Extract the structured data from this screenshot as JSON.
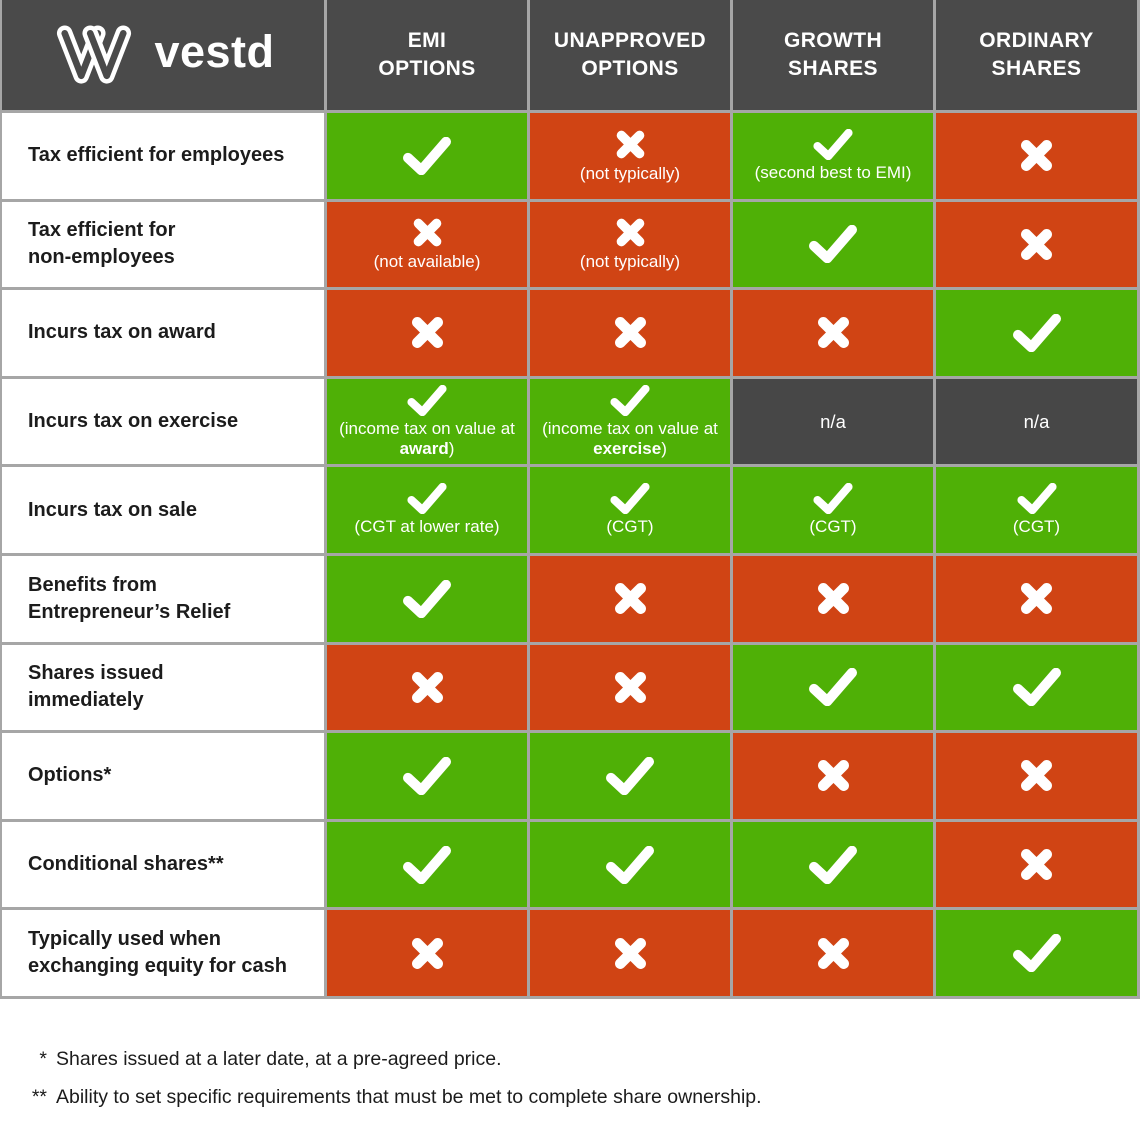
{
  "brand": {
    "name": "vestd",
    "logo_icon": "vestd-heart-logo-icon"
  },
  "colors": {
    "green": "#4fb006",
    "red": "#d04414",
    "header_gray": "#4a4a4a",
    "na_gray": "#474747",
    "grid_gray": "#a6a6a6"
  },
  "icons": {
    "yes": "check-icon",
    "no": "cross-icon"
  },
  "chart_data": {
    "type": "table",
    "title": "vestd share scheme comparison",
    "na_text": "n/a",
    "columns": [
      "EMI\nOPTIONS",
      "UNAPPROVED\nOPTIONS",
      "GROWTH\nSHARES",
      "ORDINARY\nSHARES"
    ],
    "rows": [
      {
        "label": "Tax efficient for employees",
        "cells": [
          {
            "state": "yes",
            "note": ""
          },
          {
            "state": "no",
            "note": "(not typically)"
          },
          {
            "state": "yes",
            "note": "(second best to EMI)"
          },
          {
            "state": "no",
            "note": ""
          }
        ]
      },
      {
        "label": "Tax efficient for\nnon-employees",
        "cells": [
          {
            "state": "no",
            "note": "(not available)"
          },
          {
            "state": "no",
            "note": "(not typically)"
          },
          {
            "state": "yes",
            "note": ""
          },
          {
            "state": "no",
            "note": ""
          }
        ]
      },
      {
        "label": "Incurs tax on award",
        "cells": [
          {
            "state": "no",
            "note": ""
          },
          {
            "state": "no",
            "note": ""
          },
          {
            "state": "no",
            "note": ""
          },
          {
            "state": "yes",
            "note": ""
          }
        ]
      },
      {
        "label": "Incurs tax on exercise",
        "cells": [
          {
            "state": "yes",
            "note": "(income tax on value at award)",
            "note_bold": "award"
          },
          {
            "state": "yes",
            "note": "(income tax on value at exercise)",
            "note_bold": "exercise"
          },
          {
            "state": "na",
            "note": ""
          },
          {
            "state": "na",
            "note": ""
          }
        ]
      },
      {
        "label": "Incurs tax on sale",
        "cells": [
          {
            "state": "yes",
            "note": "(CGT at lower rate)"
          },
          {
            "state": "yes",
            "note": "(CGT)"
          },
          {
            "state": "yes",
            "note": "(CGT)"
          },
          {
            "state": "yes",
            "note": "(CGT)"
          }
        ]
      },
      {
        "label": "Benefits from\nEntrepreneur’s Relief",
        "cells": [
          {
            "state": "yes",
            "note": ""
          },
          {
            "state": "no",
            "note": ""
          },
          {
            "state": "no",
            "note": ""
          },
          {
            "state": "no",
            "note": ""
          }
        ]
      },
      {
        "label": "Shares issued\nimmediately",
        "cells": [
          {
            "state": "no",
            "note": ""
          },
          {
            "state": "no",
            "note": ""
          },
          {
            "state": "yes",
            "note": ""
          },
          {
            "state": "yes",
            "note": ""
          }
        ]
      },
      {
        "label": "Options*",
        "cells": [
          {
            "state": "yes",
            "note": ""
          },
          {
            "state": "yes",
            "note": ""
          },
          {
            "state": "no",
            "note": ""
          },
          {
            "state": "no",
            "note": ""
          }
        ]
      },
      {
        "label": "Conditional shares**",
        "cells": [
          {
            "state": "yes",
            "note": ""
          },
          {
            "state": "yes",
            "note": ""
          },
          {
            "state": "yes",
            "note": ""
          },
          {
            "state": "no",
            "note": ""
          }
        ]
      },
      {
        "label": "Typically used when\nexchanging equity for cash",
        "cells": [
          {
            "state": "no",
            "note": ""
          },
          {
            "state": "no",
            "note": ""
          },
          {
            "state": "no",
            "note": ""
          },
          {
            "state": "yes",
            "note": ""
          }
        ]
      }
    ],
    "footnotes": [
      {
        "marker": "*",
        "text": "Shares issued at a later date, at a pre-agreed price."
      },
      {
        "marker": "**",
        "text": "Ability to set specific requirements that must be met to complete share ownership."
      }
    ]
  }
}
